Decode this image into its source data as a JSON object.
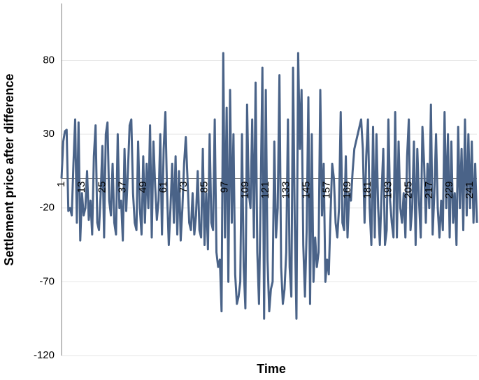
{
  "chart_data": {
    "type": "line",
    "xlabel": "Time",
    "ylabel": "Settlement price after difference",
    "ylim": [
      -120,
      120
    ],
    "yticks": [
      -120,
      -70,
      -20,
      30,
      80
    ],
    "grid": true,
    "categories": [
      1,
      null,
      null,
      null,
      null,
      null,
      null,
      null,
      null,
      null,
      null,
      null,
      13,
      null,
      null,
      null,
      null,
      null,
      null,
      null,
      null,
      null,
      null,
      null,
      25,
      null,
      null,
      null,
      null,
      null,
      null,
      null,
      null,
      null,
      null,
      null,
      37,
      null,
      null,
      null,
      null,
      null,
      null,
      null,
      null,
      null,
      null,
      null,
      49,
      null,
      null,
      null,
      null,
      null,
      null,
      null,
      null,
      null,
      null,
      null,
      61,
      null,
      null,
      null,
      null,
      null,
      null,
      null,
      null,
      null,
      null,
      null,
      73,
      null,
      null,
      null,
      null,
      null,
      null,
      null,
      null,
      null,
      null,
      null,
      85,
      null,
      null,
      null,
      null,
      null,
      null,
      null,
      null,
      null,
      null,
      null,
      97,
      null,
      null,
      null,
      null,
      null,
      null,
      null,
      null,
      null,
      null,
      null,
      109,
      null,
      null,
      null,
      null,
      null,
      null,
      null,
      null,
      null,
      null,
      null,
      121,
      null,
      null,
      null,
      null,
      null,
      null,
      null,
      null,
      null,
      null,
      null,
      133,
      null,
      null,
      null,
      null,
      null,
      null,
      null,
      null,
      null,
      null,
      null,
      145,
      null,
      null,
      null,
      null,
      null,
      null,
      null,
      null,
      null,
      null,
      null,
      157,
      null,
      null,
      null,
      null,
      null,
      null,
      null,
      null,
      null,
      null,
      null,
      169,
      null,
      null,
      null,
      null,
      null,
      null,
      null,
      null,
      null,
      null,
      null,
      181,
      null,
      null,
      null,
      null,
      null,
      null,
      null,
      null,
      null,
      null,
      null,
      193,
      null,
      null,
      null,
      null,
      null,
      null,
      null,
      null,
      null,
      null,
      null,
      205,
      null,
      null,
      null,
      null,
      null,
      null,
      null,
      null,
      null,
      null,
      null,
      217,
      null,
      null,
      null,
      null,
      null,
      null,
      null,
      null,
      null,
      null,
      null,
      229,
      null,
      null,
      null,
      null,
      null,
      null,
      null,
      null,
      null,
      null,
      null,
      241,
      null,
      null,
      null,
      null
    ],
    "series": [
      {
        "color": "#4a6388",
        "values": [
          0,
          25,
          32,
          33,
          -22,
          -20,
          -25,
          10,
          40,
          -30,
          38,
          -42,
          -10,
          -25,
          -20,
          5,
          -28,
          -15,
          -38,
          15,
          36,
          -30,
          -35,
          -10,
          22,
          -40,
          30,
          38,
          -15,
          -25,
          10,
          -30,
          -38,
          30,
          -20,
          -15,
          -42,
          20,
          -22,
          5,
          36,
          40,
          -10,
          -30,
          -35,
          25,
          -20,
          -38,
          15,
          -30,
          10,
          -20,
          36,
          -40,
          25,
          -5,
          -28,
          -15,
          30,
          -38,
          20,
          45,
          -10,
          -45,
          -20,
          10,
          -30,
          15,
          -38,
          5,
          -42,
          -20,
          10,
          28,
          0,
          -30,
          -35,
          -10,
          -38,
          -25,
          5,
          -35,
          -40,
          20,
          -45,
          -10,
          -48,
          30,
          -30,
          -35,
          40,
          -50,
          -60,
          -55,
          -90,
          85,
          -40,
          48,
          -70,
          60,
          -30,
          30,
          -65,
          -85,
          -80,
          -70,
          30,
          -60,
          -88,
          50,
          -10,
          -20,
          40,
          -40,
          65,
          -50,
          -85,
          -10,
          75,
          -95,
          60,
          -55,
          -90,
          -75,
          -70,
          25,
          -40,
          -20,
          70,
          -60,
          -85,
          -75,
          -50,
          40,
          -60,
          -80,
          75,
          -30,
          -95,
          85,
          20,
          60,
          -45,
          -80,
          -35,
          55,
          -85,
          30,
          -70,
          -40,
          -60,
          -50,
          60,
          -25,
          10,
          -70,
          -55,
          -65,
          -25,
          10,
          0,
          -30,
          -40,
          -20,
          45,
          -30,
          -35,
          15,
          -40,
          -10,
          -15,
          5,
          20,
          25,
          30,
          35,
          40,
          20,
          -30,
          15,
          40,
          -20,
          -45,
          35,
          -40,
          30,
          -20,
          -45,
          -10,
          20,
          -45,
          -35,
          40,
          -15,
          -30,
          -40,
          45,
          -40,
          25,
          -20,
          -30,
          -10,
          -40,
          15,
          40,
          -35,
          -20,
          25,
          -45,
          20,
          -15,
          -40,
          35,
          10,
          -30,
          10,
          -20,
          50,
          -38,
          -10,
          30,
          -20,
          -40,
          -15,
          -35,
          45,
          -20,
          30,
          -40,
          25,
          -30,
          -10,
          -45,
          35,
          -20,
          20,
          -35,
          40,
          -25,
          30,
          -20,
          25,
          -30,
          10,
          -30
        ]
      }
    ]
  }
}
